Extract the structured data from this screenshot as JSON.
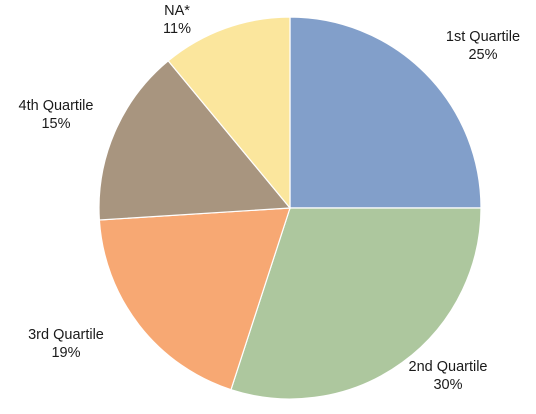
{
  "chart_data": {
    "type": "pie",
    "title": "",
    "slices": [
      {
        "label": "1st Quartile",
        "value": 25,
        "value_label": "25%",
        "color": "#829FCA"
      },
      {
        "label": "2nd Quartile",
        "value": 30,
        "value_label": "30%",
        "color": "#ADC79E"
      },
      {
        "label": "3rd Quartile",
        "value": 19,
        "value_label": "19%",
        "color": "#F7A873"
      },
      {
        "label": "4th Quartile",
        "value": 15,
        "value_label": "15%",
        "color": "#A8957F"
      },
      {
        "label": "NA*",
        "value": 11,
        "value_label": "11%",
        "color": "#FBE69D"
      }
    ],
    "start": "12 o'clock",
    "direction": "clockwise",
    "legend": "none",
    "labels_outside": true
  }
}
